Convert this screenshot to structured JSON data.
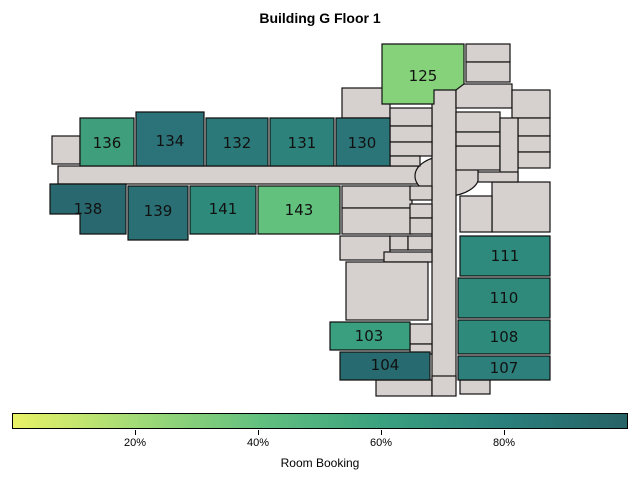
{
  "title": "Building G Floor 1",
  "colorbar": {
    "label": "Room Booking",
    "ticks": [
      "20%",
      "40%",
      "60%",
      "80%"
    ],
    "gradient": [
      "#e9f266",
      "#a2db77",
      "#63c17f",
      "#3aa17f",
      "#2a7f7c",
      "#276266"
    ]
  },
  "colors": {
    "corridor": "#d6d0ce",
    "outline": "#111111"
  },
  "rooms": [
    {
      "id": "125",
      "label": "125",
      "color": "#85d27a"
    },
    {
      "id": "136",
      "label": "136",
      "color": "#3f9e7c"
    },
    {
      "id": "134",
      "label": "134",
      "color": "#2b7279"
    },
    {
      "id": "132",
      "label": "132",
      "color": "#2b7a79"
    },
    {
      "id": "131",
      "label": "131",
      "color": "#2d827b"
    },
    {
      "id": "130",
      "label": "130",
      "color": "#2b7478"
    },
    {
      "id": "138",
      "label": "138",
      "color": "#29686f"
    },
    {
      "id": "139",
      "label": "139",
      "color": "#2a6f74"
    },
    {
      "id": "141",
      "label": "141",
      "color": "#2e8b7c"
    },
    {
      "id": "143",
      "label": "143",
      "color": "#62c17d"
    },
    {
      "id": "111",
      "label": "111",
      "color": "#2e8a7c"
    },
    {
      "id": "110",
      "label": "110",
      "color": "#2f8a7c"
    },
    {
      "id": "108",
      "label": "108",
      "color": "#2e8b7c"
    },
    {
      "id": "107",
      "label": "107",
      "color": "#2c7f7a"
    },
    {
      "id": "103",
      "label": "103",
      "color": "#3a9f7e"
    },
    {
      "id": "104",
      "label": "104",
      "color": "#276a6f"
    }
  ]
}
